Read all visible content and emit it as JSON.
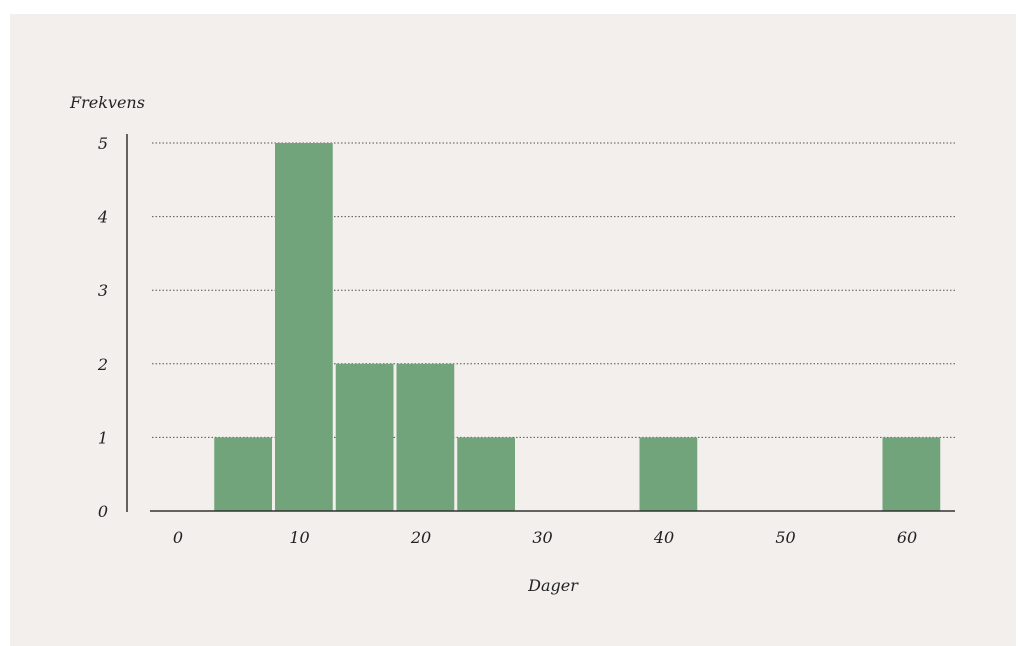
{
  "chart_data": {
    "type": "bar",
    "ylabel": "Frekvens",
    "xlabel": "Dager",
    "x_ticks": [
      "0",
      "10",
      "20",
      "30",
      "40",
      "50",
      "60"
    ],
    "y_ticks": [
      "0",
      "1",
      "2",
      "3",
      "4",
      "5"
    ],
    "xlim": [
      0,
      65
    ],
    "ylim": [
      0,
      5
    ],
    "bin_width": 5,
    "bins": [
      {
        "from": 5,
        "to": 10,
        "count": 1
      },
      {
        "from": 10,
        "to": 15,
        "count": 5
      },
      {
        "from": 15,
        "to": 20,
        "count": 2
      },
      {
        "from": 20,
        "to": 25,
        "count": 2
      },
      {
        "from": 25,
        "to": 30,
        "count": 1
      },
      {
        "from": 40,
        "to": 45,
        "count": 1
      },
      {
        "from": 60,
        "to": 65,
        "count": 1
      }
    ],
    "bar_color": "#71a47b",
    "grid": true
  }
}
